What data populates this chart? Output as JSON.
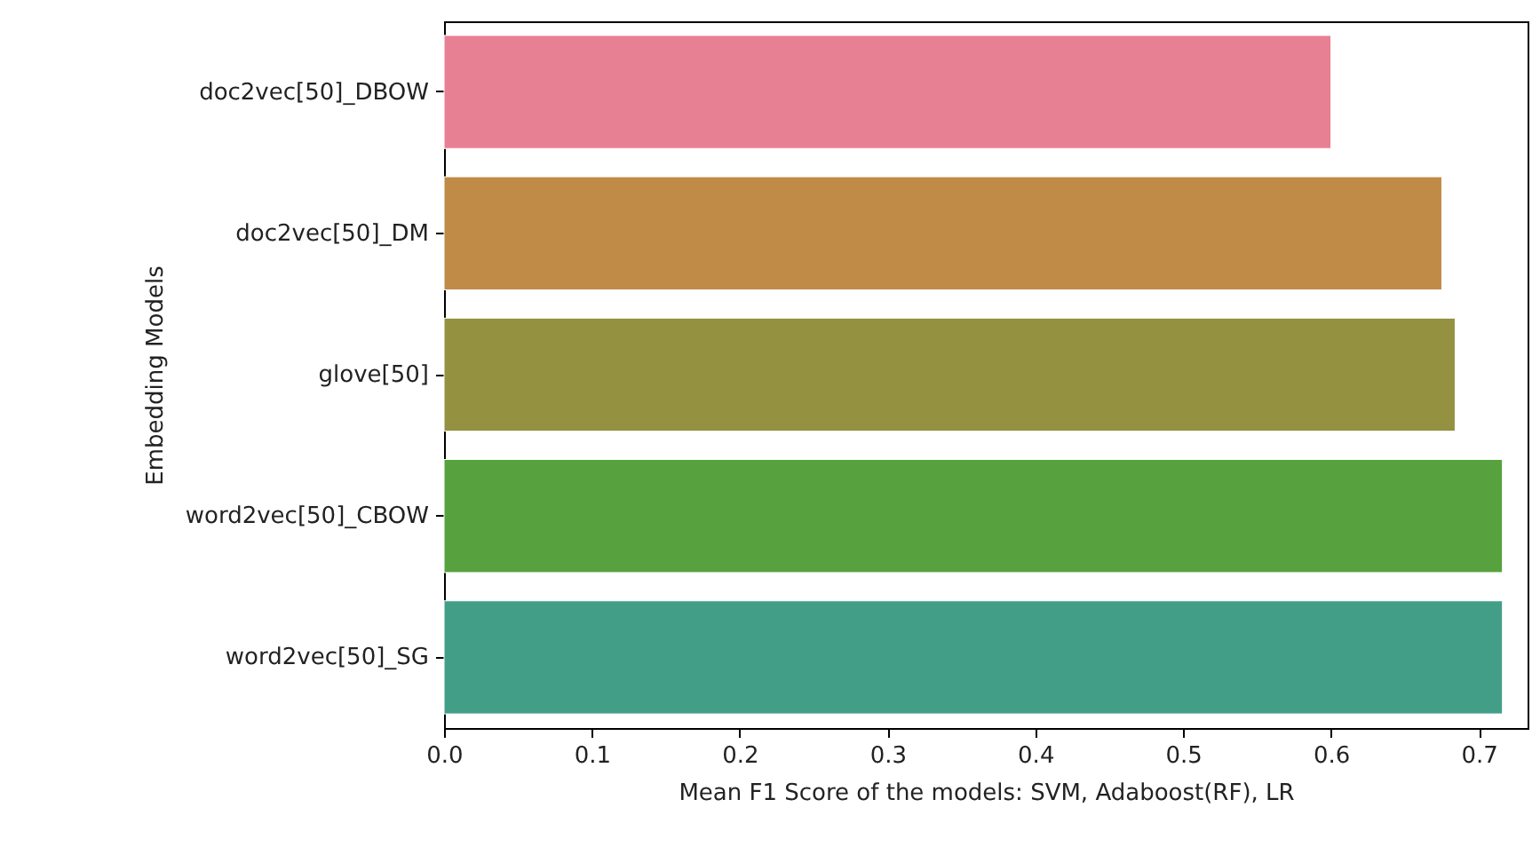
{
  "chart_data": {
    "type": "bar",
    "orientation": "horizontal",
    "xlabel": "Mean F1 Score of the models: SVM, Adaboost(RF), LR",
    "ylabel": "Embedding Models",
    "categories": [
      "doc2vec[50]_DBOW",
      "doc2vec[50]_DM",
      "glove[50]",
      "word2vec[50]_CBOW",
      "word2vec[50]_SG"
    ],
    "values": [
      0.6,
      0.675,
      0.684,
      0.716,
      0.716
    ],
    "colors": [
      "#e88093",
      "#c08a47",
      "#949141",
      "#57a23f",
      "#439e88"
    ],
    "xlim": [
      0,
      0.733
    ],
    "xticks": [
      {
        "value": 0,
        "label": "0.0"
      },
      0.1,
      0.2,
      0.3,
      0.4,
      0.5,
      0.6,
      0.7
    ],
    "grid": false
  }
}
